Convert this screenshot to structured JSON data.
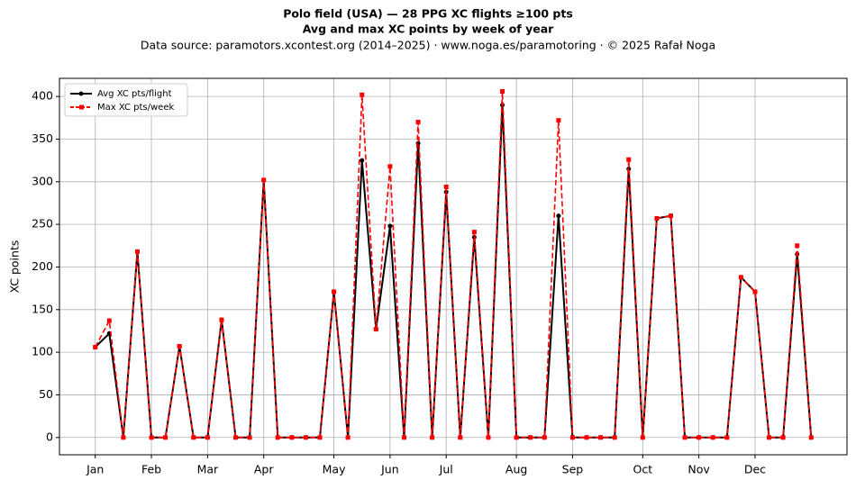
{
  "chart_data": {
    "type": "line",
    "title": "Polo field (USA)  —  28 PPG XC flights ≥100 pts",
    "subtitle": "Avg and max XC points by week of year",
    "source": "Data source: paramotors.xcontest.org (2014–2025)  ·  www.noga.es/paramotoring  ·  © 2025 Rafał Noga",
    "y_label": "XC points",
    "x": [
      1,
      2,
      3,
      4,
      5,
      6,
      7,
      8,
      9,
      10,
      11,
      12,
      13,
      14,
      15,
      16,
      17,
      18,
      19,
      20,
      21,
      22,
      23,
      24,
      25,
      26,
      27,
      28,
      29,
      30,
      31,
      32,
      33,
      34,
      35,
      36,
      37,
      38,
      39,
      40,
      41,
      42,
      43,
      44,
      45,
      46,
      47,
      48,
      49,
      50,
      51,
      52
    ],
    "series": [
      {
        "name": "Avg XC pts/flight",
        "color": "#000000",
        "marker": "circle",
        "dash": "solid",
        "values": [
          106,
          122,
          0,
          218,
          0,
          0,
          107,
          0,
          0,
          138,
          0,
          0,
          302,
          0,
          0,
          0,
          0,
          171,
          0,
          325,
          127,
          248,
          0,
          345,
          0,
          288,
          0,
          235,
          0,
          390,
          0,
          0,
          0,
          260,
          0,
          0,
          0,
          0,
          315,
          0,
          257,
          260,
          0,
          0,
          0,
          0,
          188,
          171,
          0,
          0,
          215,
          0
        ]
      },
      {
        "name": "Max XC pts/week",
        "color": "#ff0000",
        "marker": "square",
        "dash": "dashed",
        "values": [
          106,
          137,
          0,
          218,
          0,
          0,
          107,
          0,
          0,
          138,
          0,
          0,
          302,
          0,
          0,
          0,
          0,
          171,
          0,
          402,
          127,
          318,
          0,
          370,
          0,
          294,
          0,
          241,
          0,
          406,
          0,
          0,
          0,
          372,
          0,
          0,
          0,
          0,
          326,
          0,
          257,
          260,
          0,
          0,
          0,
          0,
          188,
          171,
          0,
          0,
          225,
          0
        ]
      }
    ],
    "xlim": [
      -1.55,
      54.55
    ],
    "xticks": [
      {
        "value": 1,
        "label": "Jan"
      },
      {
        "value": 5,
        "label": "Feb"
      },
      {
        "value": 9,
        "label": "Mar"
      },
      {
        "value": 13,
        "label": "Apr"
      },
      {
        "value": 18,
        "label": "May"
      },
      {
        "value": 22,
        "label": "Jun"
      },
      {
        "value": 26,
        "label": "Jul"
      },
      {
        "value": 31,
        "label": "Aug"
      },
      {
        "value": 35,
        "label": "Sep"
      },
      {
        "value": 40,
        "label": "Oct"
      },
      {
        "value": 44,
        "label": "Nov"
      },
      {
        "value": 48,
        "label": "Dec"
      }
    ],
    "ylim": [
      -20.3,
      421.3
    ],
    "yticks": [
      0,
      50,
      100,
      150,
      200,
      250,
      300,
      350,
      400
    ],
    "grid": true,
    "legend": "upper left"
  }
}
